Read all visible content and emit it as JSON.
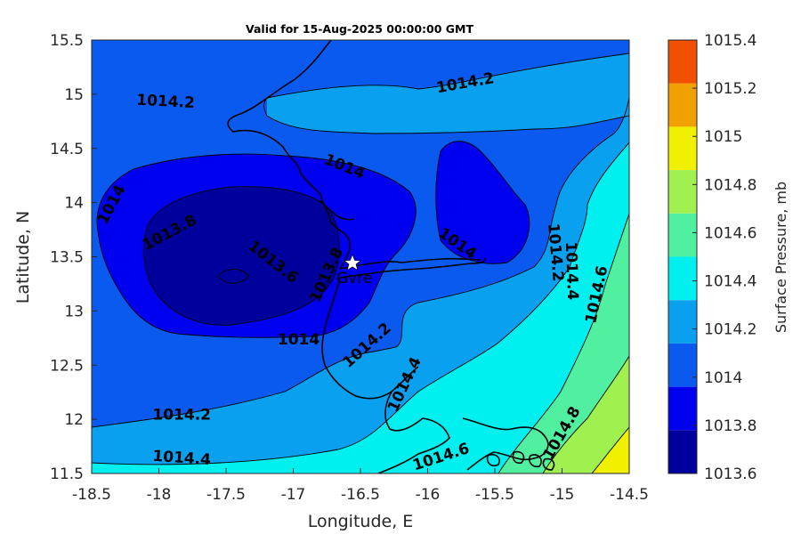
{
  "title": "Valid for 15-Aug-2025 00:00:00 GMT",
  "colors": {
    "levels": [
      "#00009c",
      "#0000f0",
      "#0a5af0",
      "#0aa0f0",
      "#00f0f0",
      "#50f0a0",
      "#a0f050",
      "#f0f000",
      "#f0a000",
      "#f05000"
    ]
  },
  "chart_data": {
    "type": "filled-contour map",
    "xlabel": "Longitude, E",
    "ylabel": "Latitude, N",
    "xlim": [
      -18.5,
      -14.5
    ],
    "ylim": [
      11.5,
      15.5
    ],
    "x_ticks": [
      "-18.5",
      "-18",
      "-17.5",
      "-17",
      "-16.5",
      "-16",
      "-15.5",
      "-15",
      "-14.5"
    ],
    "y_ticks": [
      "15.5",
      "15",
      "14.5",
      "14",
      "13.5",
      "13",
      "12.5",
      "12",
      "11.5"
    ],
    "colorbar": {
      "label": "Surface Pressure, mb",
      "ticks": [
        "1015.4",
        "1015.2",
        "1015",
        "1014.8",
        "1014.6",
        "1014.4",
        "1014.2",
        "1014",
        "1013.8",
        "1013.6"
      ]
    },
    "contour_labels": [
      {
        "text": "1014.2",
        "lon": -17.95,
        "lat": 14.93
      },
      {
        "text": "1014.2",
        "lon": -15.72,
        "lat": 15.1
      },
      {
        "text": "1014",
        "lon": -18.35,
        "lat": 13.98
      },
      {
        "text": "1013.8",
        "lon": -17.92,
        "lat": 13.72
      },
      {
        "text": "1014",
        "lon": -16.62,
        "lat": 14.33
      },
      {
        "text": "1013.6",
        "lon": -17.15,
        "lat": 13.45
      },
      {
        "text": "1013.8",
        "lon": -16.75,
        "lat": 13.33
      },
      {
        "text": "1014",
        "lon": -15.78,
        "lat": 13.62
      },
      {
        "text": "1014.2",
        "lon": -15.05,
        "lat": 13.54
      },
      {
        "text": "1014.4",
        "lon": -14.93,
        "lat": 13.37
      },
      {
        "text": "1014.6",
        "lon": -14.74,
        "lat": 13.15
      },
      {
        "text": "1014",
        "lon": -16.96,
        "lat": 12.73
      },
      {
        "text": "1014.2",
        "lon": -16.45,
        "lat": 12.68
      },
      {
        "text": "1014.4",
        "lon": -16.17,
        "lat": 12.32
      },
      {
        "text": "1014.2",
        "lon": -17.83,
        "lat": 12.04
      },
      {
        "text": "1014.4",
        "lon": -17.83,
        "lat": 11.64
      },
      {
        "text": "1014.6",
        "lon": -15.9,
        "lat": 11.65
      },
      {
        "text": "1014.8",
        "lon": -15.0,
        "lat": 11.87
      }
    ],
    "station": {
      "name": "Gvre",
      "lon": -16.57,
      "lat": 13.44
    }
  }
}
